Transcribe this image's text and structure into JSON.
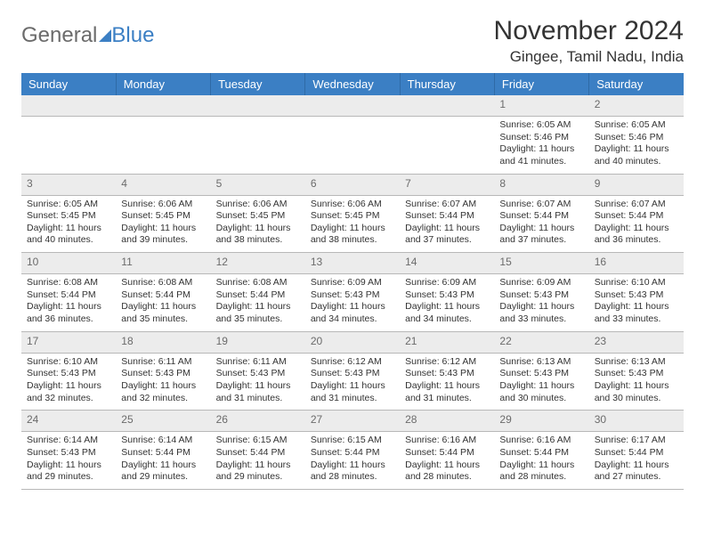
{
  "logo": {
    "part1": "General",
    "part2": "Blue"
  },
  "title": "November 2024",
  "location": "Gingee, Tamil Nadu, India",
  "colors": {
    "header_bg": "#3b7fc4",
    "header_text": "#ffffff",
    "daynum_bg": "#ececec",
    "daynum_text": "#6b6b6b",
    "cell_text": "#333333",
    "border": "#b8b8b8",
    "blank_row": "#f0f0f0"
  },
  "week_headers": [
    "Sunday",
    "Monday",
    "Tuesday",
    "Wednesday",
    "Thursday",
    "Friday",
    "Saturday"
  ],
  "weeks": [
    [
      null,
      null,
      null,
      null,
      null,
      {
        "n": "1",
        "sr": "Sunrise: 6:05 AM",
        "ss": "Sunset: 5:46 PM",
        "d1": "Daylight: 11 hours",
        "d2": "and 41 minutes."
      },
      {
        "n": "2",
        "sr": "Sunrise: 6:05 AM",
        "ss": "Sunset: 5:46 PM",
        "d1": "Daylight: 11 hours",
        "d2": "and 40 minutes."
      }
    ],
    [
      {
        "n": "3",
        "sr": "Sunrise: 6:05 AM",
        "ss": "Sunset: 5:45 PM",
        "d1": "Daylight: 11 hours",
        "d2": "and 40 minutes."
      },
      {
        "n": "4",
        "sr": "Sunrise: 6:06 AM",
        "ss": "Sunset: 5:45 PM",
        "d1": "Daylight: 11 hours",
        "d2": "and 39 minutes."
      },
      {
        "n": "5",
        "sr": "Sunrise: 6:06 AM",
        "ss": "Sunset: 5:45 PM",
        "d1": "Daylight: 11 hours",
        "d2": "and 38 minutes."
      },
      {
        "n": "6",
        "sr": "Sunrise: 6:06 AM",
        "ss": "Sunset: 5:45 PM",
        "d1": "Daylight: 11 hours",
        "d2": "and 38 minutes."
      },
      {
        "n": "7",
        "sr": "Sunrise: 6:07 AM",
        "ss": "Sunset: 5:44 PM",
        "d1": "Daylight: 11 hours",
        "d2": "and 37 minutes."
      },
      {
        "n": "8",
        "sr": "Sunrise: 6:07 AM",
        "ss": "Sunset: 5:44 PM",
        "d1": "Daylight: 11 hours",
        "d2": "and 37 minutes."
      },
      {
        "n": "9",
        "sr": "Sunrise: 6:07 AM",
        "ss": "Sunset: 5:44 PM",
        "d1": "Daylight: 11 hours",
        "d2": "and 36 minutes."
      }
    ],
    [
      {
        "n": "10",
        "sr": "Sunrise: 6:08 AM",
        "ss": "Sunset: 5:44 PM",
        "d1": "Daylight: 11 hours",
        "d2": "and 36 minutes."
      },
      {
        "n": "11",
        "sr": "Sunrise: 6:08 AM",
        "ss": "Sunset: 5:44 PM",
        "d1": "Daylight: 11 hours",
        "d2": "and 35 minutes."
      },
      {
        "n": "12",
        "sr": "Sunrise: 6:08 AM",
        "ss": "Sunset: 5:44 PM",
        "d1": "Daylight: 11 hours",
        "d2": "and 35 minutes."
      },
      {
        "n": "13",
        "sr": "Sunrise: 6:09 AM",
        "ss": "Sunset: 5:43 PM",
        "d1": "Daylight: 11 hours",
        "d2": "and 34 minutes."
      },
      {
        "n": "14",
        "sr": "Sunrise: 6:09 AM",
        "ss": "Sunset: 5:43 PM",
        "d1": "Daylight: 11 hours",
        "d2": "and 34 minutes."
      },
      {
        "n": "15",
        "sr": "Sunrise: 6:09 AM",
        "ss": "Sunset: 5:43 PM",
        "d1": "Daylight: 11 hours",
        "d2": "and 33 minutes."
      },
      {
        "n": "16",
        "sr": "Sunrise: 6:10 AM",
        "ss": "Sunset: 5:43 PM",
        "d1": "Daylight: 11 hours",
        "d2": "and 33 minutes."
      }
    ],
    [
      {
        "n": "17",
        "sr": "Sunrise: 6:10 AM",
        "ss": "Sunset: 5:43 PM",
        "d1": "Daylight: 11 hours",
        "d2": "and 32 minutes."
      },
      {
        "n": "18",
        "sr": "Sunrise: 6:11 AM",
        "ss": "Sunset: 5:43 PM",
        "d1": "Daylight: 11 hours",
        "d2": "and 32 minutes."
      },
      {
        "n": "19",
        "sr": "Sunrise: 6:11 AM",
        "ss": "Sunset: 5:43 PM",
        "d1": "Daylight: 11 hours",
        "d2": "and 31 minutes."
      },
      {
        "n": "20",
        "sr": "Sunrise: 6:12 AM",
        "ss": "Sunset: 5:43 PM",
        "d1": "Daylight: 11 hours",
        "d2": "and 31 minutes."
      },
      {
        "n": "21",
        "sr": "Sunrise: 6:12 AM",
        "ss": "Sunset: 5:43 PM",
        "d1": "Daylight: 11 hours",
        "d2": "and 31 minutes."
      },
      {
        "n": "22",
        "sr": "Sunrise: 6:13 AM",
        "ss": "Sunset: 5:43 PM",
        "d1": "Daylight: 11 hours",
        "d2": "and 30 minutes."
      },
      {
        "n": "23",
        "sr": "Sunrise: 6:13 AM",
        "ss": "Sunset: 5:43 PM",
        "d1": "Daylight: 11 hours",
        "d2": "and 30 minutes."
      }
    ],
    [
      {
        "n": "24",
        "sr": "Sunrise: 6:14 AM",
        "ss": "Sunset: 5:43 PM",
        "d1": "Daylight: 11 hours",
        "d2": "and 29 minutes."
      },
      {
        "n": "25",
        "sr": "Sunrise: 6:14 AM",
        "ss": "Sunset: 5:44 PM",
        "d1": "Daylight: 11 hours",
        "d2": "and 29 minutes."
      },
      {
        "n": "26",
        "sr": "Sunrise: 6:15 AM",
        "ss": "Sunset: 5:44 PM",
        "d1": "Daylight: 11 hours",
        "d2": "and 29 minutes."
      },
      {
        "n": "27",
        "sr": "Sunrise: 6:15 AM",
        "ss": "Sunset: 5:44 PM",
        "d1": "Daylight: 11 hours",
        "d2": "and 28 minutes."
      },
      {
        "n": "28",
        "sr": "Sunrise: 6:16 AM",
        "ss": "Sunset: 5:44 PM",
        "d1": "Daylight: 11 hours",
        "d2": "and 28 minutes."
      },
      {
        "n": "29",
        "sr": "Sunrise: 6:16 AM",
        "ss": "Sunset: 5:44 PM",
        "d1": "Daylight: 11 hours",
        "d2": "and 28 minutes."
      },
      {
        "n": "30",
        "sr": "Sunrise: 6:17 AM",
        "ss": "Sunset: 5:44 PM",
        "d1": "Daylight: 11 hours",
        "d2": "and 27 minutes."
      }
    ]
  ]
}
